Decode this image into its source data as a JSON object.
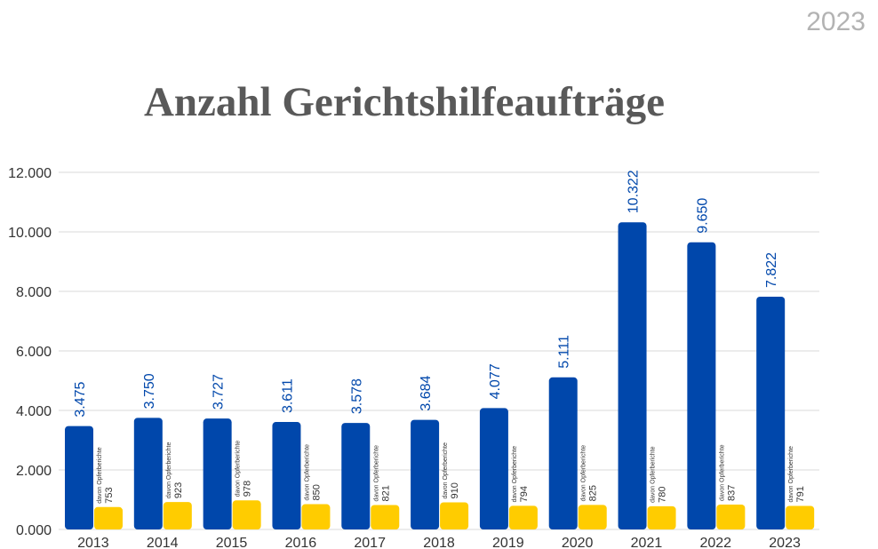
{
  "header": {
    "corner_year": "2023",
    "title": "Anzahl Gerichtshilfeaufträge"
  },
  "colors": {
    "primary": "#0047ab",
    "secondary": "#ffcc00",
    "grid": "#d9d9d9",
    "label_text": "#333333"
  },
  "chart_data": {
    "type": "bar",
    "title": "Anzahl Gerichtshilfeaufträge",
    "categories": [
      "2013",
      "2014",
      "2015",
      "2016",
      "2017",
      "2018",
      "2019",
      "2020",
      "2021",
      "2022",
      "2023"
    ],
    "series": [
      {
        "name": "",
        "color": "#0047ab",
        "values": [
          3475,
          3750,
          3727,
          3611,
          3578,
          3684,
          4077,
          5111,
          10322,
          9650,
          7822
        ],
        "labels": [
          "3.475",
          "3.750",
          "3.727",
          "3.611",
          "3.578",
          "3.684",
          "4.077",
          "5.111",
          "10.322",
          "9.650",
          "7.822"
        ]
      },
      {
        "name": "davon Opferberichte",
        "color": "#ffcc00",
        "values": [
          753,
          923,
          978,
          850,
          821,
          910,
          794,
          825,
          780,
          837,
          791
        ],
        "labels": [
          "753",
          "923",
          "978",
          "850",
          "821",
          "910",
          "794",
          "825",
          "780",
          "837",
          "791"
        ],
        "label_prefix": "davon Opferberichte"
      }
    ],
    "ylim": [
      0,
      12000
    ],
    "yticks": [
      0,
      2000,
      4000,
      6000,
      8000,
      10000,
      12000
    ],
    "ytick_labels": [
      "0.000",
      "2.000",
      "4.000",
      "6.000",
      "8.000",
      "10.000",
      "12.000"
    ],
    "xlabel": "",
    "ylabel": "",
    "grid": true,
    "legend": "none"
  }
}
